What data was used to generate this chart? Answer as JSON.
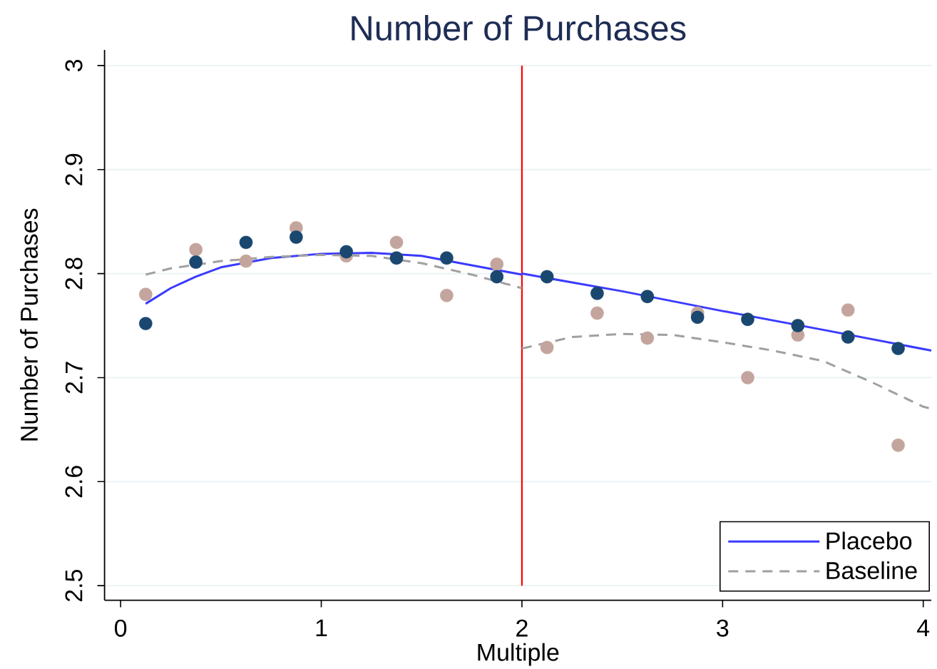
{
  "chart_data": {
    "type": "scatter",
    "title": "Number of Purchases",
    "xlabel": "Multiple",
    "ylabel": "Number of Purchases",
    "xlim": [
      -0.08,
      4.04
    ],
    "xticks": [
      0,
      1,
      2,
      3,
      4
    ],
    "ylim": [
      2.486,
      3.015
    ],
    "yticks": [
      2.5,
      2.6,
      2.7,
      2.8,
      2.9,
      3
    ],
    "grid": "y",
    "legend": "bottom right",
    "ref_lines": [
      {
        "axis": "x",
        "value": 2,
        "color": "#ff0000"
      }
    ],
    "series": [
      {
        "color": "#c4a59d",
        "marker": "circle",
        "x": [
          0.125,
          0.375,
          0.625,
          0.875,
          1.125,
          1.375,
          1.625,
          1.875,
          2.125,
          2.375,
          2.625,
          2.875,
          3.125,
          3.375,
          3.625,
          3.875
        ],
        "values": [
          2.78,
          2.823,
          2.812,
          2.844,
          2.817,
          2.83,
          2.779,
          2.809,
          2.729,
          2.762,
          2.738,
          2.762,
          2.7,
          2.741,
          2.765,
          2.635
        ]
      },
      {
        "color": "#1a476f",
        "marker": "circle",
        "x": [
          0.125,
          0.375,
          0.625,
          0.875,
          1.125,
          1.375,
          1.625,
          1.875,
          2.125,
          2.375,
          2.625,
          2.875,
          3.125,
          3.375,
          3.625,
          3.875
        ],
        "values": [
          2.752,
          2.811,
          2.83,
          2.835,
          2.821,
          2.815,
          2.815,
          2.797,
          2.797,
          2.781,
          2.778,
          2.758,
          2.756,
          2.75,
          2.739,
          2.728
        ]
      },
      {
        "type": "line",
        "name": "Placebo",
        "color": "#3a3aff",
        "marker": "none",
        "line_style": "solid",
        "x": [
          0.125,
          0.25,
          0.375,
          0.5,
          0.75,
          1.0,
          1.25,
          1.5,
          1.75,
          2.0,
          null,
          2.0,
          2.5,
          3.0,
          3.5,
          4.04
        ],
        "values": [
          2.771,
          2.786,
          2.797,
          2.806,
          2.815,
          2.819,
          2.82,
          2.817,
          2.808,
          2.799,
          null,
          2.8,
          2.783,
          2.764,
          2.746,
          2.726
        ]
      },
      {
        "type": "line",
        "name": "Baseline",
        "color": "#a0a0a0",
        "marker": "none",
        "line_style": "dashed",
        "x": [
          0.125,
          0.25,
          0.5,
          0.75,
          1.0,
          1.25,
          1.5,
          1.75,
          2.0,
          null,
          2.0,
          2.25,
          2.5,
          2.75,
          3.0,
          3.25,
          3.5,
          3.75,
          4.0,
          4.04
        ],
        "values": [
          2.799,
          2.805,
          2.812,
          2.816,
          2.818,
          2.817,
          2.81,
          2.799,
          2.786,
          null,
          2.728,
          2.739,
          2.742,
          2.741,
          2.734,
          2.726,
          2.716,
          2.695,
          2.672,
          2.67
        ]
      }
    ]
  }
}
